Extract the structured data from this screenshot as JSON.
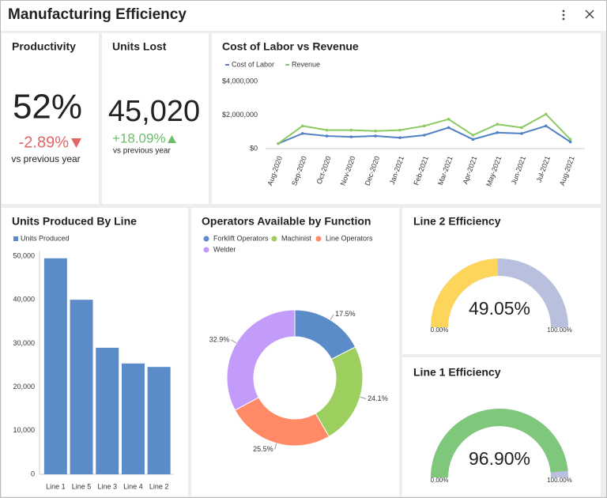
{
  "header": {
    "title": "Manufacturing Efficiency"
  },
  "kpis": [
    {
      "title": "Productivity",
      "value": "52%",
      "change": "-2.89%",
      "caption": "vs previous year"
    },
    {
      "title": "Units Lost",
      "value": "45,020",
      "change": "+18.09%",
      "caption": "vs previous year"
    }
  ],
  "chart_data": [
    {
      "type": "line",
      "title": "Cost of Labor vs Revenue",
      "categories": [
        "Aug-2020",
        "Sep-2020",
        "Oct-2020",
        "Nov-2020",
        "Dec-2020",
        "Jan-2021",
        "Feb-2021",
        "Mar-2021",
        "Apr-2021",
        "May-2021",
        "Jun-2021",
        "Jul-2021",
        "Aug-2021"
      ],
      "series": [
        {
          "name": "Cost of Labor",
          "color": "#4f7fc4",
          "values": [
            300000,
            900000,
            750000,
            700000,
            750000,
            650000,
            800000,
            1250000,
            550000,
            950000,
            900000,
            1350000,
            400000
          ]
        },
        {
          "name": "Revenue",
          "color": "#8cc960",
          "values": [
            300000,
            1350000,
            1100000,
            1100000,
            1050000,
            1100000,
            1350000,
            1750000,
            800000,
            1450000,
            1250000,
            2050000,
            550000
          ]
        }
      ],
      "ylim": [
        0,
        4000000
      ],
      "yticks": [
        {
          "value": 0,
          "label": "$0"
        },
        {
          "value": 2000000,
          "label": "$2,000,000"
        },
        {
          "value": 4000000,
          "label": "$4,000,000"
        }
      ]
    },
    {
      "type": "bar",
      "title": "Units Produced By Line",
      "categories": [
        "Line 1",
        "Line 5",
        "Line 3",
        "Line 4",
        "Line 2"
      ],
      "series": [
        {
          "name": "Units Produced",
          "color": "#5b8bc9",
          "values": [
            49500,
            40000,
            29000,
            25400,
            24600
          ]
        }
      ],
      "ylim": [
        0,
        50000
      ],
      "yticks": [
        0,
        {
          "value": 10000,
          "label": "10,000"
        },
        {
          "value": 20000,
          "label": "20,000"
        },
        {
          "value": 30000,
          "label": "30,000"
        },
        {
          "value": 40000,
          "label": "40,000"
        },
        {
          "value": 50000,
          "label": "50,000"
        }
      ]
    },
    {
      "type": "pie",
      "title": "Operators Available by Function",
      "categories": [
        "Forklift Operators",
        "Machinist",
        "Line Operators",
        "Welder"
      ],
      "values": [
        17.5,
        24.1,
        25.5,
        32.9
      ],
      "value_labels": [
        "17.5%",
        "24.1%",
        "25.5%",
        "32.9%"
      ],
      "colors": [
        "#5b8bc9",
        "#9ccf5e",
        "#ff8a65",
        "#c39bfa"
      ]
    },
    {
      "type": "gauge",
      "title": "Line 2 Efficiency",
      "value": 49.05,
      "value_label": "49.05%",
      "range": [
        {
          "value": 0,
          "label": "0.00%"
        },
        {
          "value": 100,
          "label": "100.00%"
        }
      ],
      "color": "#fdd55a",
      "track_color": "#b8c0de"
    },
    {
      "type": "gauge",
      "title": "Line 1 Efficiency",
      "value": 96.9,
      "value_label": "96.90%",
      "range": [
        {
          "value": 0,
          "label": "0.00%"
        },
        {
          "value": 100,
          "label": "100.00%"
        }
      ],
      "color": "#7ec77b",
      "track_color": "#b8c0de"
    }
  ]
}
